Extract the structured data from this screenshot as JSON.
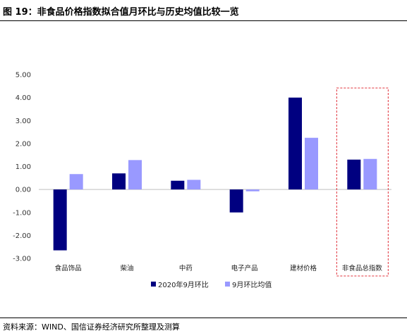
{
  "title": "图 19：非食品价格指数拟合值月环比与历史均值比较一览",
  "source": "资料来源：WIND、国信证券经济研究所整理及测算",
  "colors": {
    "series1": "#000080",
    "series2": "#9999FF",
    "highlight_box": "#E0303A"
  },
  "chart_data": {
    "type": "bar",
    "categories": [
      "食品饰品",
      "柴油",
      "中药",
      "电子产品",
      "建材价格",
      "非食品总指数"
    ],
    "series": [
      {
        "name": "2020年9月环比",
        "values": [
          -2.65,
          0.7,
          0.38,
          -1.0,
          4.0,
          1.3
        ]
      },
      {
        "name": "9月环比均值",
        "values": [
          0.67,
          1.28,
          0.42,
          -0.08,
          2.25,
          1.33
        ]
      }
    ],
    "ylim": [
      -3.0,
      5.0
    ],
    "yticks": [
      "5.00",
      "4.00",
      "3.00",
      "2.00",
      "1.00",
      "0.00",
      "-1.00",
      "-2.00",
      "-3.00"
    ],
    "grid": false,
    "legend": "bottom",
    "highlight_category": "非食品总指数"
  }
}
